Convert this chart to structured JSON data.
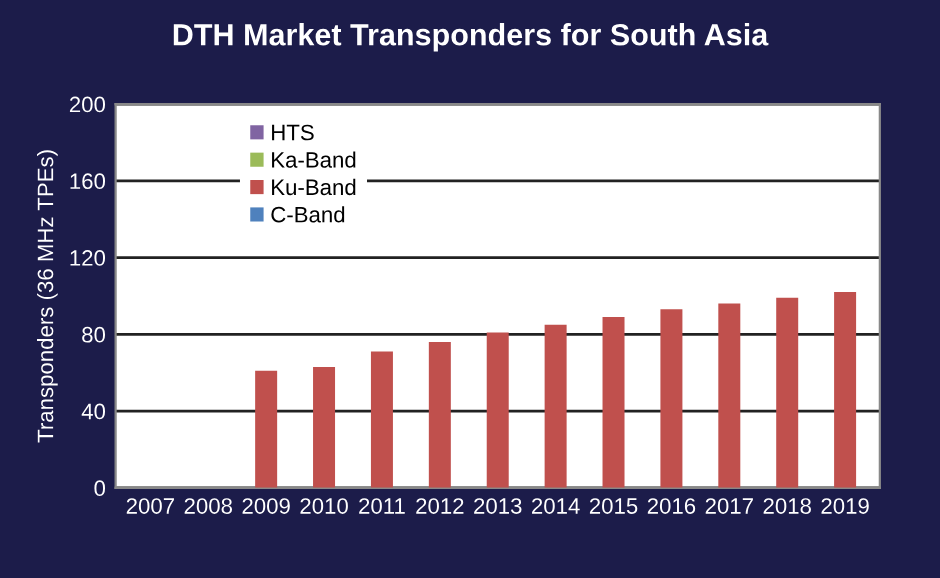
{
  "chart_data": {
    "type": "bar",
    "title": "DTH Market Transponders for South Asia",
    "ylabel": "Transponders (36 MHz TPEs)",
    "categories": [
      "2007",
      "2008",
      "2009",
      "2010",
      "2011",
      "2012",
      "2013",
      "2014",
      "2015",
      "2016",
      "2017",
      "2018",
      "2019"
    ],
    "stacked": true,
    "series": [
      {
        "name": "C-Band",
        "color": "#4f81bd",
        "values": [
          0,
          0,
          0,
          0,
          0,
          0,
          0,
          0,
          0,
          0,
          0,
          0,
          0
        ]
      },
      {
        "name": "Ku-Band",
        "color": "#c0504d",
        "values": [
          0,
          0,
          61,
          63,
          71,
          76,
          81,
          85,
          89,
          93,
          96,
          99,
          102
        ]
      },
      {
        "name": "Ka-Band",
        "color": "#9bbb59",
        "values": [
          0,
          0,
          0,
          0,
          0,
          0,
          0,
          0,
          0,
          0,
          0,
          0,
          0
        ]
      },
      {
        "name": "HTS",
        "color": "#8064a2",
        "values": [
          0,
          0,
          0,
          0,
          0,
          0,
          0,
          0,
          0,
          0,
          0,
          0,
          0
        ]
      }
    ],
    "ylim": [
      0,
      200
    ],
    "yticks": [
      0,
      40,
      80,
      120,
      160,
      200
    ],
    "grid": "y",
    "legend": "top left"
  }
}
